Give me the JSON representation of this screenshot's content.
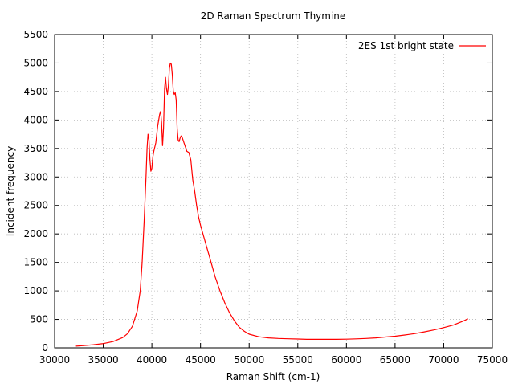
{
  "chart_data": {
    "type": "line",
    "title": "2D Raman Spectrum Thymine",
    "xlabel": "Raman Shift (cm-1)",
    "ylabel": "Incident frequency",
    "xlim": [
      30000,
      75000
    ],
    "ylim": [
      0,
      5500
    ],
    "x_ticks": [
      30000,
      35000,
      40000,
      45000,
      50000,
      55000,
      60000,
      65000,
      70000,
      75000
    ],
    "y_ticks": [
      0,
      500,
      1000,
      1500,
      2000,
      2500,
      3000,
      3500,
      4000,
      4500,
      5000,
      5500
    ],
    "grid": true,
    "legend_position": "top-right",
    "series": [
      {
        "name": "2ES 1st bright state",
        "color": "#ff0000",
        "x": [
          32200,
          33000,
          34000,
          35000,
          36000,
          37000,
          37500,
          38000,
          38500,
          38800,
          39000,
          39200,
          39400,
          39500,
          39600,
          39700,
          39800,
          39900,
          40000,
          40100,
          40200,
          40400,
          40600,
          40800,
          40900,
          41000,
          41100,
          41200,
          41300,
          41400,
          41500,
          41600,
          41700,
          41800,
          41900,
          42000,
          42100,
          42200,
          42300,
          42400,
          42500,
          42600,
          42700,
          42800,
          42900,
          43000,
          43100,
          43200,
          43400,
          43600,
          43800,
          44000,
          44200,
          44400,
          44600,
          44800,
          45000,
          45500,
          46000,
          46500,
          47000,
          47500,
          48000,
          48500,
          49000,
          49500,
          50000,
          51000,
          52000,
          53000,
          54000,
          55000,
          56000,
          57000,
          58000,
          59000,
          60000,
          61000,
          62000,
          63000,
          64000,
          65000,
          66000,
          67000,
          68000,
          69000,
          70000,
          71000,
          72000,
          72500
        ],
        "y": [
          30,
          40,
          55,
          75,
          110,
          180,
          250,
          380,
          650,
          1000,
          1500,
          2200,
          3000,
          3500,
          3750,
          3650,
          3300,
          3100,
          3150,
          3350,
          3450,
          3600,
          3900,
          4100,
          4150,
          3950,
          3550,
          3850,
          4550,
          4750,
          4550,
          4450,
          4600,
          4900,
          5000,
          4980,
          4800,
          4500,
          4450,
          4480,
          4350,
          3850,
          3650,
          3620,
          3680,
          3720,
          3700,
          3650,
          3550,
          3450,
          3430,
          3300,
          2950,
          2750,
          2500,
          2300,
          2150,
          1850,
          1550,
          1250,
          1000,
          790,
          610,
          470,
          360,
          290,
          240,
          195,
          175,
          165,
          160,
          155,
          150,
          150,
          150,
          150,
          152,
          158,
          165,
          175,
          190,
          205,
          225,
          250,
          280,
          315,
          355,
          400,
          470,
          510
        ]
      }
    ]
  }
}
